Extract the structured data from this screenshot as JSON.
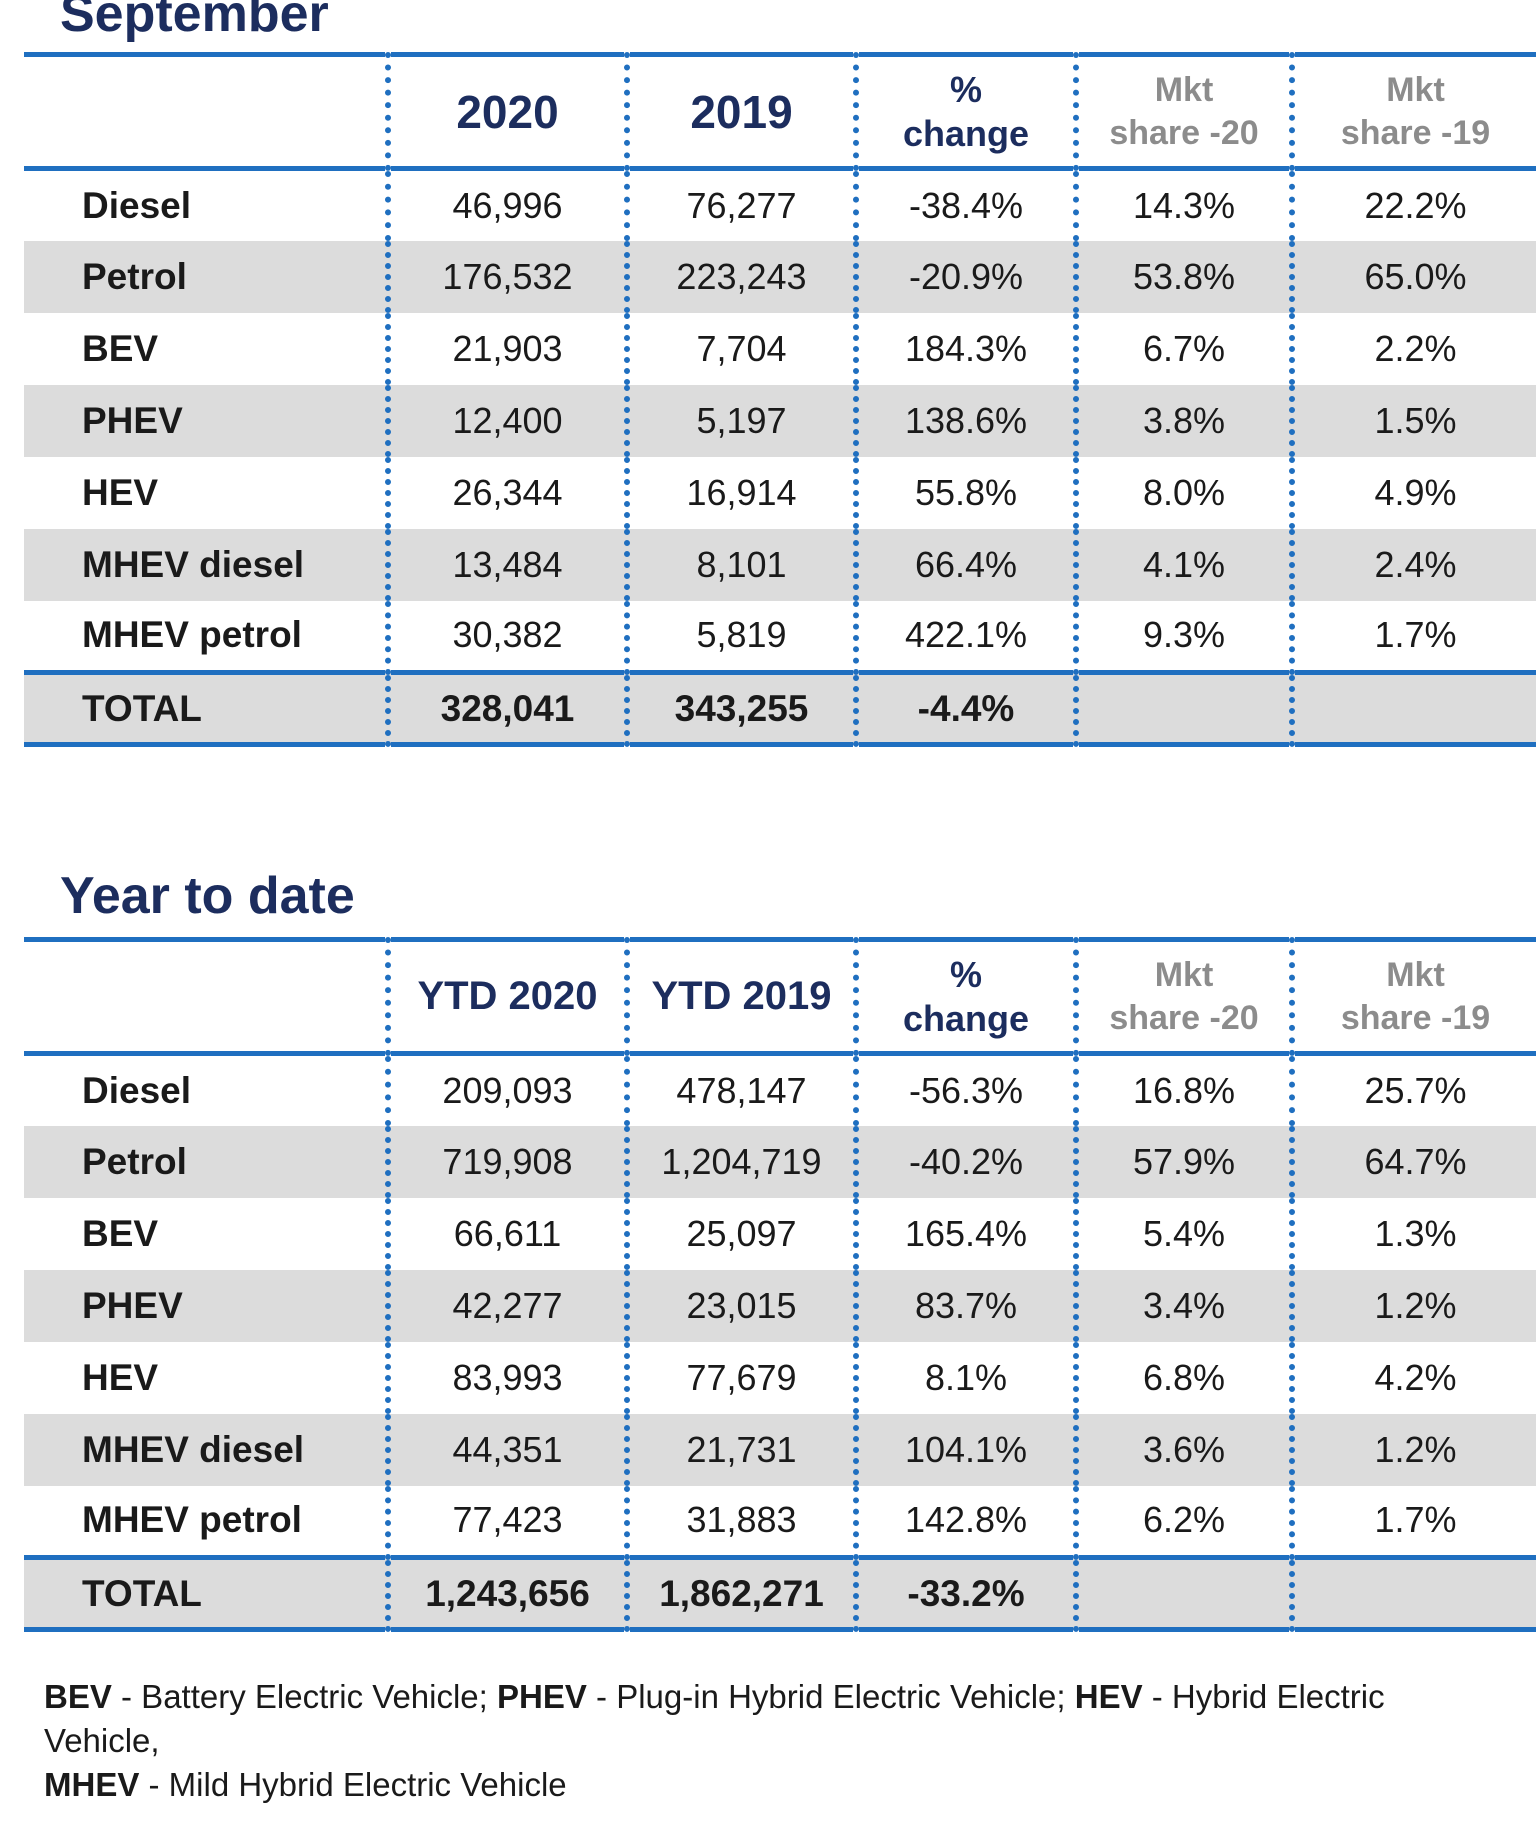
{
  "september": {
    "title": "September",
    "headers": {
      "col_2020": "2020",
      "col_2019": "2019",
      "change_line1": "%",
      "change_line2": "change",
      "share20_line1": "Mkt",
      "share20_line2": "share -20",
      "share19_line1": "Mkt",
      "share19_line2": "share -19"
    },
    "rows": [
      {
        "label": "Diesel",
        "v2020": "46,996",
        "v2019": "76,277",
        "change": "-38.4%",
        "share20": "14.3%",
        "share19": "22.2%"
      },
      {
        "label": "Petrol",
        "v2020": "176,532",
        "v2019": "223,243",
        "change": "-20.9%",
        "share20": "53.8%",
        "share19": "65.0%"
      },
      {
        "label": "BEV",
        "v2020": "21,903",
        "v2019": "7,704",
        "change": "184.3%",
        "share20": "6.7%",
        "share19": "2.2%"
      },
      {
        "label": "PHEV",
        "v2020": "12,400",
        "v2019": "5,197",
        "change": "138.6%",
        "share20": "3.8%",
        "share19": "1.5%"
      },
      {
        "label": "HEV",
        "v2020": "26,344",
        "v2019": "16,914",
        "change": "55.8%",
        "share20": "8.0%",
        "share19": "4.9%"
      },
      {
        "label": "MHEV diesel",
        "v2020": "13,484",
        "v2019": "8,101",
        "change": "66.4%",
        "share20": "4.1%",
        "share19": "2.4%"
      },
      {
        "label": "MHEV petrol",
        "v2020": "30,382",
        "v2019": "5,819",
        "change": "422.1%",
        "share20": "9.3%",
        "share19": "1.7%"
      }
    ],
    "total": {
      "label": "TOTAL",
      "v2020": "328,041",
      "v2019": "343,255",
      "change": "-4.4%"
    }
  },
  "ytd": {
    "title": "Year to date",
    "headers": {
      "col_2020": "YTD 2020",
      "col_2019": "YTD 2019",
      "change_line1": "%",
      "change_line2": "change",
      "share20_line1": "Mkt",
      "share20_line2": "share -20",
      "share19_line1": "Mkt",
      "share19_line2": "share -19"
    },
    "rows": [
      {
        "label": "Diesel",
        "v2020": "209,093",
        "v2019": "478,147",
        "change": "-56.3%",
        "share20": "16.8%",
        "share19": "25.7%"
      },
      {
        "label": "Petrol",
        "v2020": "719,908",
        "v2019": "1,204,719",
        "change": "-40.2%",
        "share20": "57.9%",
        "share19": "64.7%"
      },
      {
        "label": "BEV",
        "v2020": "66,611",
        "v2019": "25,097",
        "change": "165.4%",
        "share20": "5.4%",
        "share19": "1.3%"
      },
      {
        "label": "PHEV",
        "v2020": "42,277",
        "v2019": "23,015",
        "change": "83.7%",
        "share20": "3.4%",
        "share19": "1.2%"
      },
      {
        "label": "HEV",
        "v2020": "83,993",
        "v2019": "77,679",
        "change": "8.1%",
        "share20": "6.8%",
        "share19": "4.2%"
      },
      {
        "label": "MHEV diesel",
        "v2020": "44,351",
        "v2019": "21,731",
        "change": "104.1%",
        "share20": "3.6%",
        "share19": "1.2%"
      },
      {
        "label": "MHEV petrol",
        "v2020": "77,423",
        "v2019": "31,883",
        "change": "142.8%",
        "share20": "6.2%",
        "share19": "1.7%"
      }
    ],
    "total": {
      "label": "TOTAL",
      "v2020": "1,243,656",
      "v2019": "1,862,271",
      "change": "-33.2%"
    }
  },
  "footnote": {
    "bev_abbr": "BEV",
    "bev_text": " - Battery Electric Vehicle; ",
    "phev_abbr": "PHEV",
    "phev_text": " - Plug-in Hybrid Electric Vehicle; ",
    "hev_abbr": "HEV",
    "hev_text": " - Hybrid Electric Vehicle,",
    "mhev_abbr": "MHEV",
    "mhev_text": " - Mild Hybrid Electric Vehicle"
  },
  "colors": {
    "title_navy": "#1c2d5e",
    "rule_blue": "#1f6fc0",
    "row_shade": "#dcdcdc",
    "share_header_grey": "#8c8c8c"
  }
}
